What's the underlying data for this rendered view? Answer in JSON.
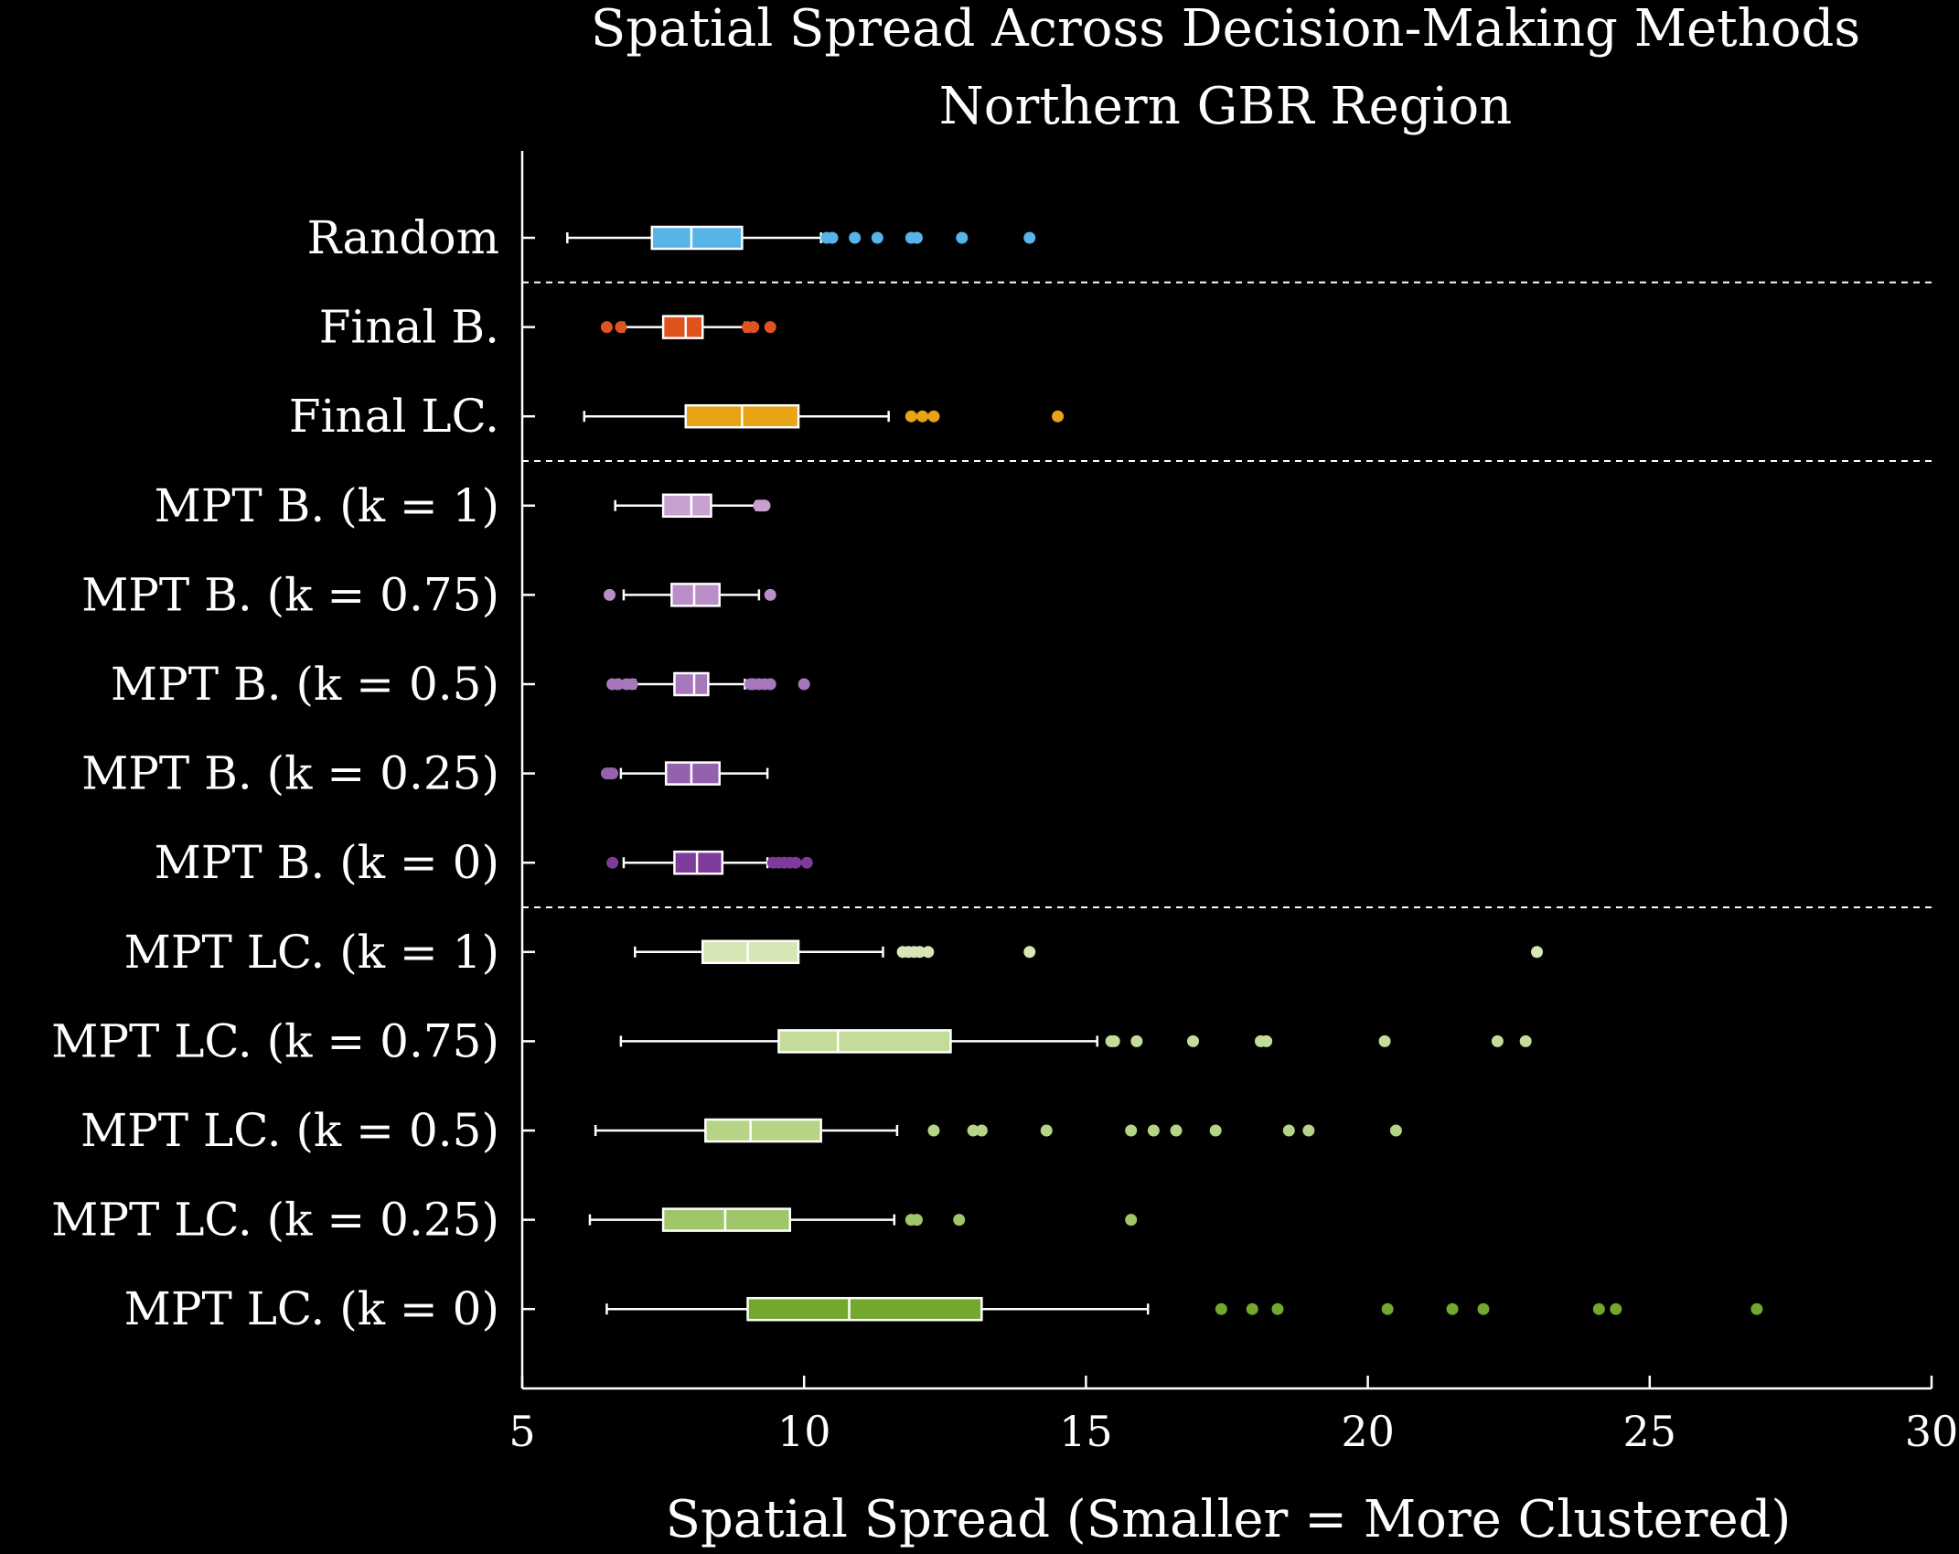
{
  "chart_data": {
    "type": "boxplot",
    "orientation": "horizontal",
    "title": "Spatial Spread Across Decision-Making Methods",
    "subtitle": "Northern GBR Region",
    "xlabel": "Spatial Spread (Smaller = More Clustered)",
    "ylabel": "",
    "xlim": [
      5,
      30
    ],
    "xticks": [
      5,
      10,
      15,
      20,
      25,
      30
    ],
    "grid": false,
    "group_separators_after": [
      "Random",
      "Final LC.",
      "MPT B. (k = 0)"
    ],
    "series": [
      {
        "label": "Random",
        "color": "#56b4e9",
        "whisker_low": 5.8,
        "q1": 7.3,
        "median": 8.0,
        "q3": 8.9,
        "whisker_high": 10.3,
        "outliers": [
          10.4,
          10.5,
          10.9,
          11.3,
          11.9,
          12.0,
          12.8,
          14.0
        ]
      },
      {
        "label": "Final B.",
        "color": "#e0531f",
        "whisker_low": 6.8,
        "q1": 7.5,
        "median": 7.9,
        "q3": 8.2,
        "whisker_high": 8.95,
        "outliers": [
          6.5,
          6.75,
          9.0,
          9.1,
          9.4
        ]
      },
      {
        "label": "Final LC.",
        "color": "#e8a317",
        "whisker_low": 6.1,
        "q1": 7.9,
        "median": 8.9,
        "q3": 9.9,
        "whisker_high": 11.5,
        "outliers": [
          11.9,
          12.1,
          12.3,
          14.5
        ]
      },
      {
        "label": "MPT B. (k = 1)",
        "color": "#c7a0cf",
        "whisker_low": 6.65,
        "q1": 7.5,
        "median": 8.0,
        "q3": 8.35,
        "whisker_high": 9.15,
        "outliers": [
          9.2,
          9.25,
          9.3
        ]
      },
      {
        "label": "MPT B. (k = 0.75)",
        "color": "#b98dc6",
        "whisker_low": 6.8,
        "q1": 7.65,
        "median": 8.05,
        "q3": 8.5,
        "whisker_high": 9.2,
        "outliers": [
          6.55,
          9.4
        ]
      },
      {
        "label": "MPT B. (k = 0.5)",
        "color": "#a678bb",
        "whisker_low": 7.0,
        "q1": 7.7,
        "median": 8.05,
        "q3": 8.3,
        "whisker_high": 8.95,
        "outliers": [
          6.6,
          6.7,
          6.85,
          6.95,
          9.05,
          9.1,
          9.2,
          9.3,
          9.4,
          10.0
        ]
      },
      {
        "label": "MPT B. (k = 0.25)",
        "color": "#9461ad",
        "whisker_low": 6.75,
        "q1": 7.55,
        "median": 8.0,
        "q3": 8.5,
        "whisker_high": 9.35,
        "outliers": [
          6.5,
          6.55,
          6.6
        ]
      },
      {
        "label": "MPT B. (k = 0)",
        "color": "#7e3b9b",
        "whisker_low": 6.8,
        "q1": 7.7,
        "median": 8.1,
        "q3": 8.55,
        "whisker_high": 9.35,
        "outliers": [
          6.6,
          9.45,
          9.55,
          9.65,
          9.75,
          9.85,
          10.05
        ]
      },
      {
        "label": "MPT LC. (k = 1)",
        "color": "#d6e6b4",
        "whisker_low": 7.0,
        "q1": 8.2,
        "median": 9.0,
        "q3": 9.9,
        "whisker_high": 11.4,
        "outliers": [
          11.75,
          11.85,
          11.95,
          12.05,
          12.2,
          14.0,
          23.0
        ]
      },
      {
        "label": "MPT LC. (k = 0.75)",
        "color": "#c4dc9a",
        "whisker_low": 6.75,
        "q1": 9.55,
        "median": 10.6,
        "q3": 12.6,
        "whisker_high": 15.2,
        "outliers": [
          15.45,
          15.5,
          15.9,
          16.9,
          18.1,
          18.2,
          20.3,
          22.3,
          22.8
        ]
      },
      {
        "label": "MPT LC. (k = 0.5)",
        "color": "#b5d486",
        "whisker_low": 6.3,
        "q1": 8.25,
        "median": 9.05,
        "q3": 10.3,
        "whisker_high": 11.65,
        "outliers": [
          12.3,
          13.0,
          13.15,
          14.3,
          15.8,
          16.2,
          16.6,
          17.3,
          18.6,
          18.95,
          20.5
        ]
      },
      {
        "label": "MPT LC. (k = 0.25)",
        "color": "#9fc76a",
        "whisker_low": 6.2,
        "q1": 7.5,
        "median": 8.6,
        "q3": 9.75,
        "whisker_high": 11.6,
        "outliers": [
          11.9,
          12.0,
          12.75,
          15.8
        ]
      },
      {
        "label": "MPT LC. (k = 0)",
        "color": "#72a82e",
        "whisker_low": 6.5,
        "q1": 9.0,
        "median": 10.8,
        "q3": 13.15,
        "whisker_high": 16.1,
        "outliers": [
          17.4,
          17.95,
          18.4,
          20.35,
          21.5,
          22.05,
          24.1,
          24.4,
          26.9
        ]
      }
    ]
  }
}
